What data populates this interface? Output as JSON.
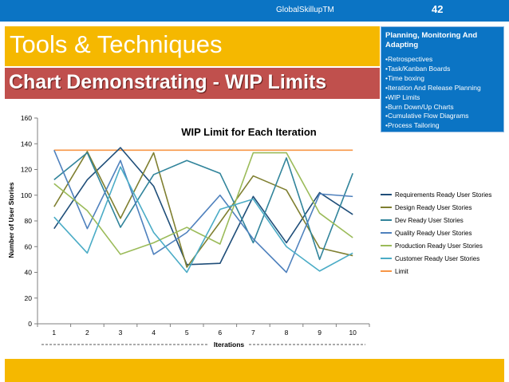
{
  "header": {
    "brand": "GlobalSkillupTM",
    "slide_number": "42"
  },
  "title": "Tools & Techniques",
  "subtitle": "Chart Demonstrating - WIP Limits",
  "side_panel": {
    "heading": "Planning, Monitoring And Adapting",
    "items": [
      "•Retrospectives",
      "•Task/Kanban Boards",
      "•Time boxing",
      "•Iteration And Release Planning",
      "•WIP Limits",
      "•Burn Down/Up Charts",
      "•Cumulative Flow Diagrams",
      "•Process Tailoring"
    ]
  },
  "colors": {
    "accent_blue": "#0b74c4",
    "accent_yellow": "#f5b800",
    "accent_red": "#c0504d"
  },
  "chart_data": {
    "type": "line",
    "title": "WIP Limit for Each Iteration",
    "xlabel": "Iterations",
    "ylabel": "Number of User Stories",
    "x": [
      1,
      2,
      3,
      4,
      5,
      6,
      7,
      8,
      9,
      10
    ],
    "ylim": [
      0,
      160
    ],
    "yticks": [
      0,
      20,
      40,
      60,
      80,
      100,
      120,
      140,
      160
    ],
    "grid": false,
    "legend_position": "right",
    "series": [
      {
        "name": "Requirements Ready User Stories",
        "color": "#1f4e79",
        "values": [
          74,
          112,
          137,
          107,
          46,
          47,
          99,
          63,
          102,
          85
        ]
      },
      {
        "name": "Design Ready User Stories",
        "color": "#7f7f30",
        "values": [
          91,
          134,
          82,
          133,
          44,
          79,
          115,
          104,
          59,
          53
        ]
      },
      {
        "name": "Dev  Ready User Stories",
        "color": "#31849b",
        "values": [
          112,
          133,
          75,
          116,
          127,
          117,
          63,
          129,
          50,
          117
        ]
      },
      {
        "name": "Quality Ready User Stories",
        "color": "#4f81bd",
        "values": [
          135,
          74,
          127,
          54,
          71,
          100,
          66,
          40,
          101,
          99
        ]
      },
      {
        "name": "Production Ready User Stories",
        "color": "#9bbb59",
        "values": [
          109,
          88,
          54,
          63,
          75,
          62,
          133,
          133,
          86,
          67
        ]
      },
      {
        "name": "Customer Ready User Stories",
        "color": "#4bacc6",
        "values": [
          83,
          55,
          122,
          71,
          40,
          89,
          97,
          60,
          41,
          55
        ]
      },
      {
        "name": "Limit",
        "color": "#f79646",
        "values": [
          135,
          135,
          135,
          135,
          135,
          135,
          135,
          135,
          135,
          135
        ]
      }
    ]
  }
}
